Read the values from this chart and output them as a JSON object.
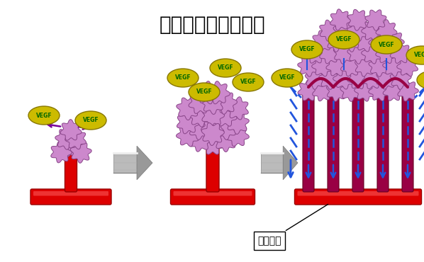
{
  "title": "「がん」の血管新生",
  "title_fontsize": 20,
  "background_color": "#ffffff",
  "vegf_color": "#ccbb00",
  "vegf_text_color": "#006600",
  "vegf_text": "VEGF",
  "cell_color": "#cc88cc",
  "cell_edge_color": "#884488",
  "blood_vessel_color": "#dd0000",
  "new_vessel_color": "#990044",
  "arrow_color": "#770099",
  "blue_arrow_color": "#2255dd",
  "annotation_text": "新生血管",
  "annotation_fontsize": 10
}
